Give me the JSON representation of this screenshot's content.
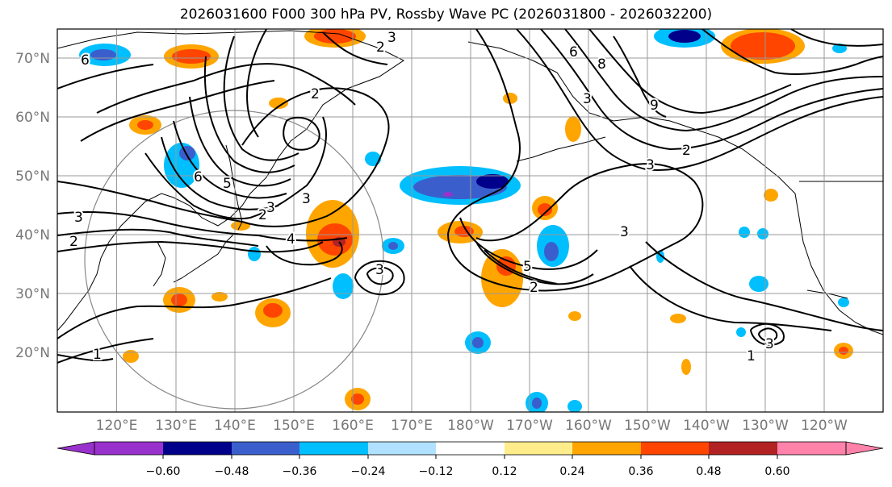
{
  "title": "2026031600 F000 300 hPa PV, Rossby Wave PC (2026031800 - 2026032200)",
  "map": {
    "lat_labels": [
      "70°N",
      "60°N",
      "50°N",
      "40°N",
      "30°N",
      "20°N"
    ],
    "lon_labels": [
      "120°E",
      "130°E",
      "140°E",
      "150°E",
      "160°E",
      "170°E",
      "180°W",
      "170°W",
      "160°W",
      "150°W",
      "140°W",
      "130°W",
      "120°W"
    ],
    "contour_labels": [
      "6",
      "2",
      "3",
      "3",
      "2",
      "5",
      "2",
      "3",
      "2",
      "3",
      "4",
      "3",
      "5",
      "2",
      "3",
      "3",
      "1",
      "1",
      "3",
      "8",
      "6",
      "2",
      "9",
      "6",
      "3"
    ]
  },
  "colorbar": {
    "tick_labels": [
      "−0.60",
      "−0.48",
      "−0.36",
      "−0.24",
      "−0.12",
      "0.12",
      "0.24",
      "0.36",
      "0.48",
      "0.60"
    ],
    "colors": [
      "#9932cc",
      "#00008b",
      "#3a5fcd",
      "#00bfff",
      "#b0e2ff",
      "#ffffff",
      "#ffec8b",
      "#ffa500",
      "#ff4500",
      "#b22222",
      "#ff82ab"
    ]
  }
}
